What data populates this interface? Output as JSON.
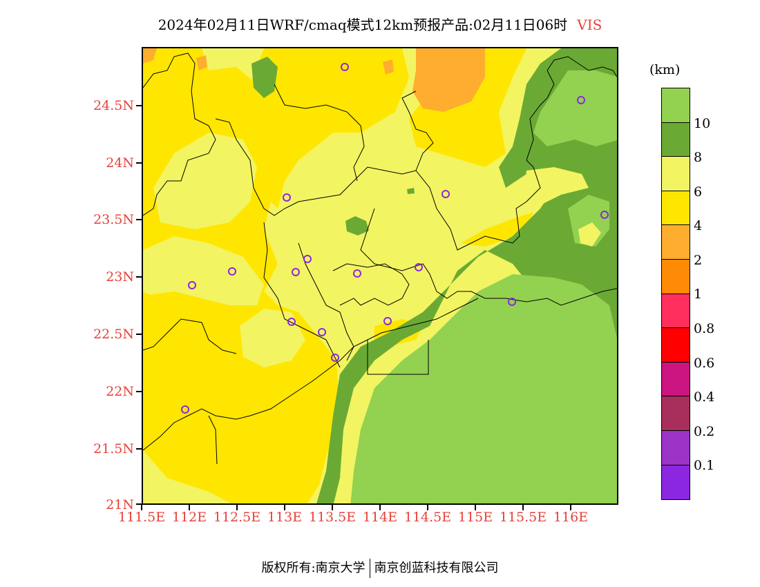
{
  "title": {
    "text": "2024年02月11日WRF/cmaq模式12km预报产品:02月11日06时",
    "variable": "VIS"
  },
  "axes": {
    "lat_labels": [
      "24.5N",
      "24N",
      "23.5N",
      "23N",
      "22.5N",
      "22N",
      "21.5N",
      "21N"
    ],
    "lon_labels": [
      "111.5E",
      "112E",
      "112.5E",
      "113E",
      "113.5E",
      "114E",
      "114.5E",
      "115E",
      "115.5E",
      "116E"
    ]
  },
  "colorbar": {
    "unit": "(km)",
    "labels": [
      "10",
      "8",
      "6",
      "4",
      "2",
      "1",
      "0.8",
      "0.6",
      "0.4",
      "0.2",
      "0.1"
    ],
    "colors": [
      "#93d151",
      "#6aaa34",
      "#f2f462",
      "#ffe600",
      "#ffad2e",
      "#ff8a05",
      "#ff2e5c",
      "#ff0000",
      "#cc1480",
      "#a82e5c",
      "#9b34c7",
      "#8b27e0"
    ]
  },
  "map_colors": {
    "lightgreen": "#93d151",
    "darkgreen": "#6aaa34",
    "lightyellow": "#f2f462",
    "yellow": "#ffe600",
    "orange": "#ffad2e",
    "marker": "#8b27e0"
  },
  "footer": {
    "left": "版权所有:南京大学",
    "right": "南京创蓝科技有限公司"
  }
}
